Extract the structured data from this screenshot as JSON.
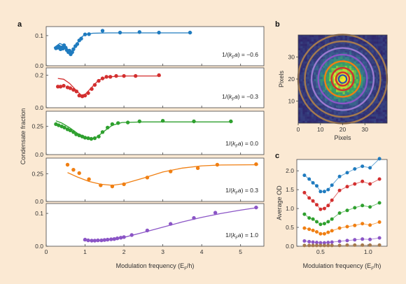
{
  "panel_letters": [
    "a",
    "b",
    "c"
  ],
  "chart_data": [
    {
      "id": "a",
      "type": "scatter",
      "xlabel": "Modulation frequency (E_F/h)",
      "ylabel": "Condensate fraction",
      "xlim": [
        0,
        5.6
      ],
      "xticks": [
        0,
        1,
        2,
        3,
        4,
        5
      ],
      "subplots": [
        {
          "annotation": "1/(k_F a) = −0.6",
          "color": "#1f7bbf",
          "ylim": [
            0,
            0.13
          ],
          "yticks": [
            0.0,
            0.1
          ],
          "yticklabels": [
            "0.0",
            "0.1"
          ],
          "points": [
            [
              0.25,
              0.058
            ],
            [
              0.3,
              0.06
            ],
            [
              0.33,
              0.064
            ],
            [
              0.37,
              0.055
            ],
            [
              0.4,
              0.061
            ],
            [
              0.43,
              0.057
            ],
            [
              0.46,
              0.068
            ],
            [
              0.5,
              0.06
            ],
            [
              0.53,
              0.052
            ],
            [
              0.57,
              0.045
            ],
            [
              0.6,
              0.05
            ],
            [
              0.63,
              0.038
            ],
            [
              0.67,
              0.045
            ],
            [
              0.7,
              0.055
            ],
            [
              0.75,
              0.065
            ],
            [
              0.8,
              0.072
            ],
            [
              0.85,
              0.084
            ],
            [
              0.9,
              0.09
            ],
            [
              1.0,
              0.104
            ],
            [
              1.1,
              0.105
            ],
            [
              1.45,
              0.116
            ],
            [
              1.9,
              0.11
            ],
            [
              2.4,
              0.112
            ],
            [
              2.9,
              0.11
            ],
            [
              3.7,
              0.11
            ]
          ],
          "fit": [
            [
              0.2,
              0.06
            ],
            [
              0.35,
              0.074
            ],
            [
              0.45,
              0.068
            ],
            [
              0.55,
              0.052
            ],
            [
              0.62,
              0.045
            ],
            [
              0.7,
              0.052
            ],
            [
              0.8,
              0.075
            ],
            [
              0.9,
              0.094
            ],
            [
              1.0,
              0.104
            ],
            [
              1.2,
              0.108
            ],
            [
              1.6,
              0.109
            ],
            [
              2.5,
              0.109
            ],
            [
              3.75,
              0.109
            ]
          ]
        },
        {
          "annotation": "1/(k_F a) = −0.3",
          "color": "#d32f2f",
          "ylim": [
            0,
            0.245
          ],
          "yticks": [
            0.0,
            0.2
          ],
          "yticklabels": [
            "0.0",
            "0.2"
          ],
          "points": [
            [
              0.3,
              0.13
            ],
            [
              0.37,
              0.13
            ],
            [
              0.45,
              0.135
            ],
            [
              0.55,
              0.125
            ],
            [
              0.62,
              0.12
            ],
            [
              0.7,
              0.11
            ],
            [
              0.78,
              0.1
            ],
            [
              0.85,
              0.075
            ],
            [
              0.93,
              0.07
            ],
            [
              1.0,
              0.075
            ],
            [
              1.08,
              0.09
            ],
            [
              1.17,
              0.115
            ],
            [
              1.25,
              0.14
            ],
            [
              1.35,
              0.165
            ],
            [
              1.45,
              0.18
            ],
            [
              1.55,
              0.19
            ],
            [
              1.65,
              0.19
            ],
            [
              1.8,
              0.195
            ],
            [
              2.0,
              0.195
            ],
            [
              2.3,
              0.195
            ],
            [
              2.9,
              0.2
            ]
          ],
          "fit": [
            [
              0.3,
              0.18
            ],
            [
              0.45,
              0.175
            ],
            [
              0.6,
              0.15
            ],
            [
              0.8,
              0.1
            ],
            [
              0.9,
              0.078
            ],
            [
              1.0,
              0.082
            ],
            [
              1.15,
              0.12
            ],
            [
              1.35,
              0.17
            ],
            [
              1.6,
              0.19
            ],
            [
              2.0,
              0.195
            ],
            [
              2.95,
              0.195
            ]
          ]
        },
        {
          "annotation": "1/(k_F a) = 0.0",
          "color": "#2ea02e",
          "ylim": [
            0,
            0.385
          ],
          "yticks": [
            0.0,
            0.25
          ],
          "yticklabels": [
            "0.0",
            "0.25"
          ],
          "points": [
            [
              0.25,
              0.27
            ],
            [
              0.32,
              0.26
            ],
            [
              0.4,
              0.25
            ],
            [
              0.47,
              0.24
            ],
            [
              0.55,
              0.225
            ],
            [
              0.62,
              0.215
            ],
            [
              0.7,
              0.2
            ],
            [
              0.77,
              0.18
            ],
            [
              0.85,
              0.17
            ],
            [
              0.93,
              0.16
            ],
            [
              1.0,
              0.15
            ],
            [
              1.08,
              0.145
            ],
            [
              1.16,
              0.14
            ],
            [
              1.25,
              0.145
            ],
            [
              1.35,
              0.16
            ],
            [
              1.45,
              0.2
            ],
            [
              1.58,
              0.24
            ],
            [
              1.7,
              0.27
            ],
            [
              1.85,
              0.28
            ],
            [
              2.1,
              0.285
            ],
            [
              2.4,
              0.295
            ],
            [
              3.0,
              0.3
            ],
            [
              3.8,
              0.295
            ],
            [
              4.75,
              0.295
            ]
          ],
          "fit": [
            [
              0.25,
              0.3
            ],
            [
              0.4,
              0.28
            ],
            [
              0.6,
              0.24
            ],
            [
              0.8,
              0.19
            ],
            [
              1.0,
              0.155
            ],
            [
              1.15,
              0.14
            ],
            [
              1.3,
              0.155
            ],
            [
              1.5,
              0.21
            ],
            [
              1.7,
              0.26
            ],
            [
              1.95,
              0.285
            ],
            [
              2.5,
              0.29
            ],
            [
              4.8,
              0.29
            ]
          ]
        },
        {
          "annotation": "1/(k_F a) = 0.3",
          "color": "#f07f12",
          "ylim": [
            0,
            0.39
          ],
          "yticks": [
            0.0,
            0.25
          ],
          "yticklabels": [
            "0.0",
            "0.25"
          ],
          "points": [
            [
              0.55,
              0.33
            ],
            [
              0.7,
              0.285
            ],
            [
              0.85,
              0.255
            ],
            [
              1.1,
              0.2
            ],
            [
              1.4,
              0.145
            ],
            [
              1.7,
              0.135
            ],
            [
              2.0,
              0.155
            ],
            [
              2.6,
              0.215
            ],
            [
              3.2,
              0.27
            ],
            [
              3.9,
              0.3
            ],
            [
              4.4,
              0.33
            ],
            [
              5.4,
              0.335
            ]
          ],
          "fit": [
            [
              0.55,
              0.26
            ],
            [
              0.8,
              0.22
            ],
            [
              1.1,
              0.18
            ],
            [
              1.4,
              0.155
            ],
            [
              1.7,
              0.145
            ],
            [
              2.0,
              0.16
            ],
            [
              2.5,
              0.21
            ],
            [
              3.0,
              0.265
            ],
            [
              3.5,
              0.3
            ],
            [
              4.0,
              0.32
            ],
            [
              4.5,
              0.328
            ],
            [
              5.45,
              0.33
            ]
          ]
        },
        {
          "annotation": "1/(k_F a) = 1.0",
          "color": "#8b55c6",
          "ylim": [
            0,
            0.13
          ],
          "yticks": [
            0.0,
            0.1
          ],
          "yticklabels": [
            "0.0",
            "0.1"
          ],
          "points": [
            [
              1.0,
              0.02
            ],
            [
              1.08,
              0.018
            ],
            [
              1.17,
              0.017
            ],
            [
              1.25,
              0.017
            ],
            [
              1.33,
              0.018
            ],
            [
              1.42,
              0.018
            ],
            [
              1.5,
              0.019
            ],
            [
              1.58,
              0.02
            ],
            [
              1.67,
              0.021
            ],
            [
              1.75,
              0.022
            ],
            [
              1.83,
              0.024
            ],
            [
              1.92,
              0.026
            ],
            [
              2.0,
              0.028
            ],
            [
              2.2,
              0.034
            ],
            [
              2.6,
              0.048
            ],
            [
              3.2,
              0.068
            ],
            [
              3.8,
              0.086
            ],
            [
              4.35,
              0.102
            ],
            [
              5.4,
              0.118
            ]
          ],
          "fit": [
            [
              0.95,
              0.018
            ],
            [
              1.3,
              0.017
            ],
            [
              1.6,
              0.02
            ],
            [
              2.0,
              0.027
            ],
            [
              2.5,
              0.042
            ],
            [
              3.0,
              0.058
            ],
            [
              3.5,
              0.074
            ],
            [
              4.0,
              0.088
            ],
            [
              4.5,
              0.1
            ],
            [
              5.0,
              0.11
            ],
            [
              5.45,
              0.118
            ]
          ]
        }
      ]
    },
    {
      "id": "b",
      "type": "heatmap",
      "xlabel": "Pixels",
      "ylabel": "Pixels",
      "xlim": [
        0,
        40
      ],
      "ylim": [
        0,
        40
      ],
      "xticks": [
        0,
        10,
        20,
        30
      ],
      "yticks": [
        10,
        20,
        30
      ],
      "center": [
        20,
        20
      ],
      "ring_radii": [
        3,
        5,
        8,
        11,
        14,
        17,
        20
      ],
      "ring_colors": [
        "#d32f2f",
        "#d32f2f",
        "#f07f12",
        "#8b55c6",
        "#9b7ad0",
        "#a57a4e",
        "#a57a4e"
      ]
    },
    {
      "id": "c",
      "type": "line",
      "xlabel": "Modulation frequency (E_F/h)",
      "ylabel": "Average OD",
      "xlim": [
        0.25,
        1.2
      ],
      "ylim": [
        0,
        2.3
      ],
      "xticks": [
        0.5,
        1.0
      ],
      "xticklabels": [
        "0.5",
        "1.0"
      ],
      "yticks": [
        0.0,
        0.5,
        1.0,
        1.5,
        2.0
      ],
      "yticklabels": [
        "0.0",
        "0.5",
        "1.0",
        "1.5",
        "2.0"
      ],
      "x": [
        0.33,
        0.38,
        0.42,
        0.46,
        0.5,
        0.54,
        0.58,
        0.62,
        0.7,
        0.78,
        0.86,
        0.94,
        1.02,
        1.12
      ],
      "series": [
        {
          "color": "#1f7bbf",
          "values": [
            1.88,
            1.78,
            1.68,
            1.6,
            1.45,
            1.45,
            1.5,
            1.62,
            1.85,
            1.95,
            2.05,
            2.12,
            2.08,
            2.32
          ]
        },
        {
          "color": "#d32f2f",
          "values": [
            1.42,
            1.28,
            1.2,
            1.1,
            0.98,
            1.0,
            1.08,
            1.22,
            1.48,
            1.58,
            1.65,
            1.72,
            1.65,
            1.78
          ]
        },
        {
          "color": "#2ea02e",
          "values": [
            0.85,
            0.75,
            0.72,
            0.65,
            0.58,
            0.6,
            0.65,
            0.72,
            0.88,
            0.95,
            1.02,
            1.08,
            1.04,
            1.15
          ]
        },
        {
          "color": "#f07f12",
          "values": [
            0.48,
            0.45,
            0.42,
            0.38,
            0.33,
            0.33,
            0.37,
            0.41,
            0.48,
            0.52,
            0.55,
            0.6,
            0.56,
            0.64
          ]
        },
        {
          "color": "#8b55c6",
          "values": [
            0.14,
            0.12,
            0.11,
            0.1,
            0.09,
            0.09,
            0.1,
            0.11,
            0.13,
            0.15,
            0.17,
            0.19,
            0.18,
            0.22
          ]
        },
        {
          "color": "#a57a4e",
          "values": [
            0.02,
            0.02,
            0.02,
            0.02,
            0.02,
            0.02,
            0.02,
            0.02,
            0.02,
            0.03,
            0.03,
            0.03,
            0.03,
            0.03
          ]
        }
      ]
    }
  ]
}
